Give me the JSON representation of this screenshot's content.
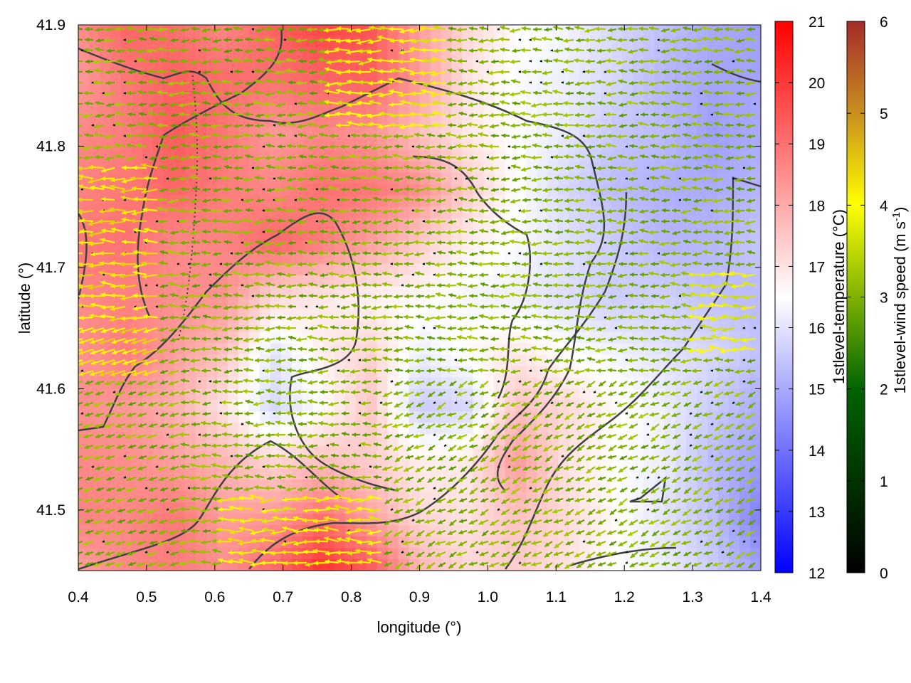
{
  "chart_data": {
    "type": "heatmap",
    "title": "",
    "xlabel": "longitude (°)",
    "ylabel": "latitude (°)",
    "xlim": [
      0.4,
      1.4
    ],
    "ylim": [
      41.45,
      41.9
    ],
    "x_ticks": [
      "0.4",
      "0.5",
      "0.6",
      "0.7",
      "0.8",
      "0.9",
      "1.0",
      "1.1",
      "1.2",
      "1.3",
      "1.4"
    ],
    "y_ticks": [
      "41.5",
      "41.6",
      "41.7",
      "41.8",
      "41.9"
    ],
    "temperature_colorbar": {
      "label": "1stlevel-temperature (°C)",
      "range": [
        12,
        21
      ],
      "ticks": [
        "12",
        "13",
        "14",
        "15",
        "16",
        "17",
        "18",
        "19",
        "20",
        "21"
      ],
      "colors": [
        "#0000ff",
        "#ffffff",
        "#ff0000"
      ]
    },
    "wind_colorbar": {
      "label": "1stlevel-wind speed (m s-1)",
      "label_main": "1stlevel-wind speed (m s",
      "label_sup": "-1",
      "label_end": ")",
      "range": [
        0,
        6
      ],
      "ticks": [
        "0",
        "1",
        "2",
        "3",
        "4",
        "5",
        "6"
      ],
      "colors": [
        "#000000",
        "#006400",
        "#7fb200",
        "#ffff00",
        "#c8901e",
        "#a52a2a"
      ]
    },
    "temperature_field": {
      "grid": "coarse estimate, rows from north (41.9) to south (41.45), columns from west (0.4) to east (1.4)",
      "values": [
        [
          18.5,
          19.2,
          19.0,
          18.6,
          19.3,
          19.8,
          19.5,
          18.2,
          17.2,
          16.6,
          16.3,
          15.8,
          15.4,
          15.0,
          14.8
        ],
        [
          18.3,
          18.9,
          19.3,
          19.1,
          19.0,
          19.2,
          19.3,
          18.3,
          17.0,
          16.4,
          16.2,
          15.8,
          15.2,
          14.9,
          14.9
        ],
        [
          18.6,
          18.8,
          19.4,
          18.9,
          18.3,
          18.6,
          18.4,
          17.6,
          16.9,
          16.5,
          16.1,
          15.5,
          15.3,
          14.8,
          15.0
        ],
        [
          18.7,
          18.9,
          19.2,
          18.8,
          18.6,
          19.0,
          18.9,
          18.5,
          17.4,
          16.5,
          15.8,
          15.3,
          15.1,
          15.0,
          15.2
        ],
        [
          18.9,
          19.0,
          18.6,
          18.7,
          19.2,
          18.8,
          18.2,
          17.4,
          16.8,
          16.4,
          16.0,
          15.6,
          15.2,
          15.2,
          15.5
        ],
        [
          18.6,
          18.7,
          18.5,
          18.4,
          17.2,
          16.9,
          16.7,
          16.6,
          16.3,
          16.2,
          15.9,
          15.6,
          15.7,
          15.4,
          15.3
        ],
        [
          18.4,
          18.8,
          18.2,
          17.6,
          16.0,
          16.8,
          17.3,
          16.2,
          16.6,
          16.9,
          16.5,
          16.3,
          16.0,
          15.8,
          15.4
        ],
        [
          18.5,
          18.3,
          17.9,
          17.0,
          15.8,
          16.5,
          17.5,
          15.6,
          15.8,
          17.6,
          17.2,
          16.6,
          16.2,
          15.6,
          15.0
        ],
        [
          18.6,
          18.5,
          18.2,
          17.8,
          17.2,
          17.6,
          17.4,
          16.8,
          16.9,
          18.3,
          17.0,
          16.5,
          16.2,
          15.3,
          14.8
        ],
        [
          18.7,
          18.6,
          18.9,
          18.2,
          18.3,
          19.0,
          18.1,
          17.2,
          17.0,
          17.6,
          17.2,
          16.6,
          16.0,
          15.4,
          14.2
        ],
        [
          18.2,
          18.6,
          18.8,
          18.5,
          19.2,
          20.2,
          19.5,
          17.8,
          17.2,
          17.4,
          17.0,
          16.5,
          16.2,
          15.6,
          14.8
        ]
      ]
    },
    "wind_field_note": "quiver arrows mostly pointing west (easterly flow), 1.5–4 m/s, strongest (yellow, ~4 m/s) in south-west and north-centre"
  }
}
